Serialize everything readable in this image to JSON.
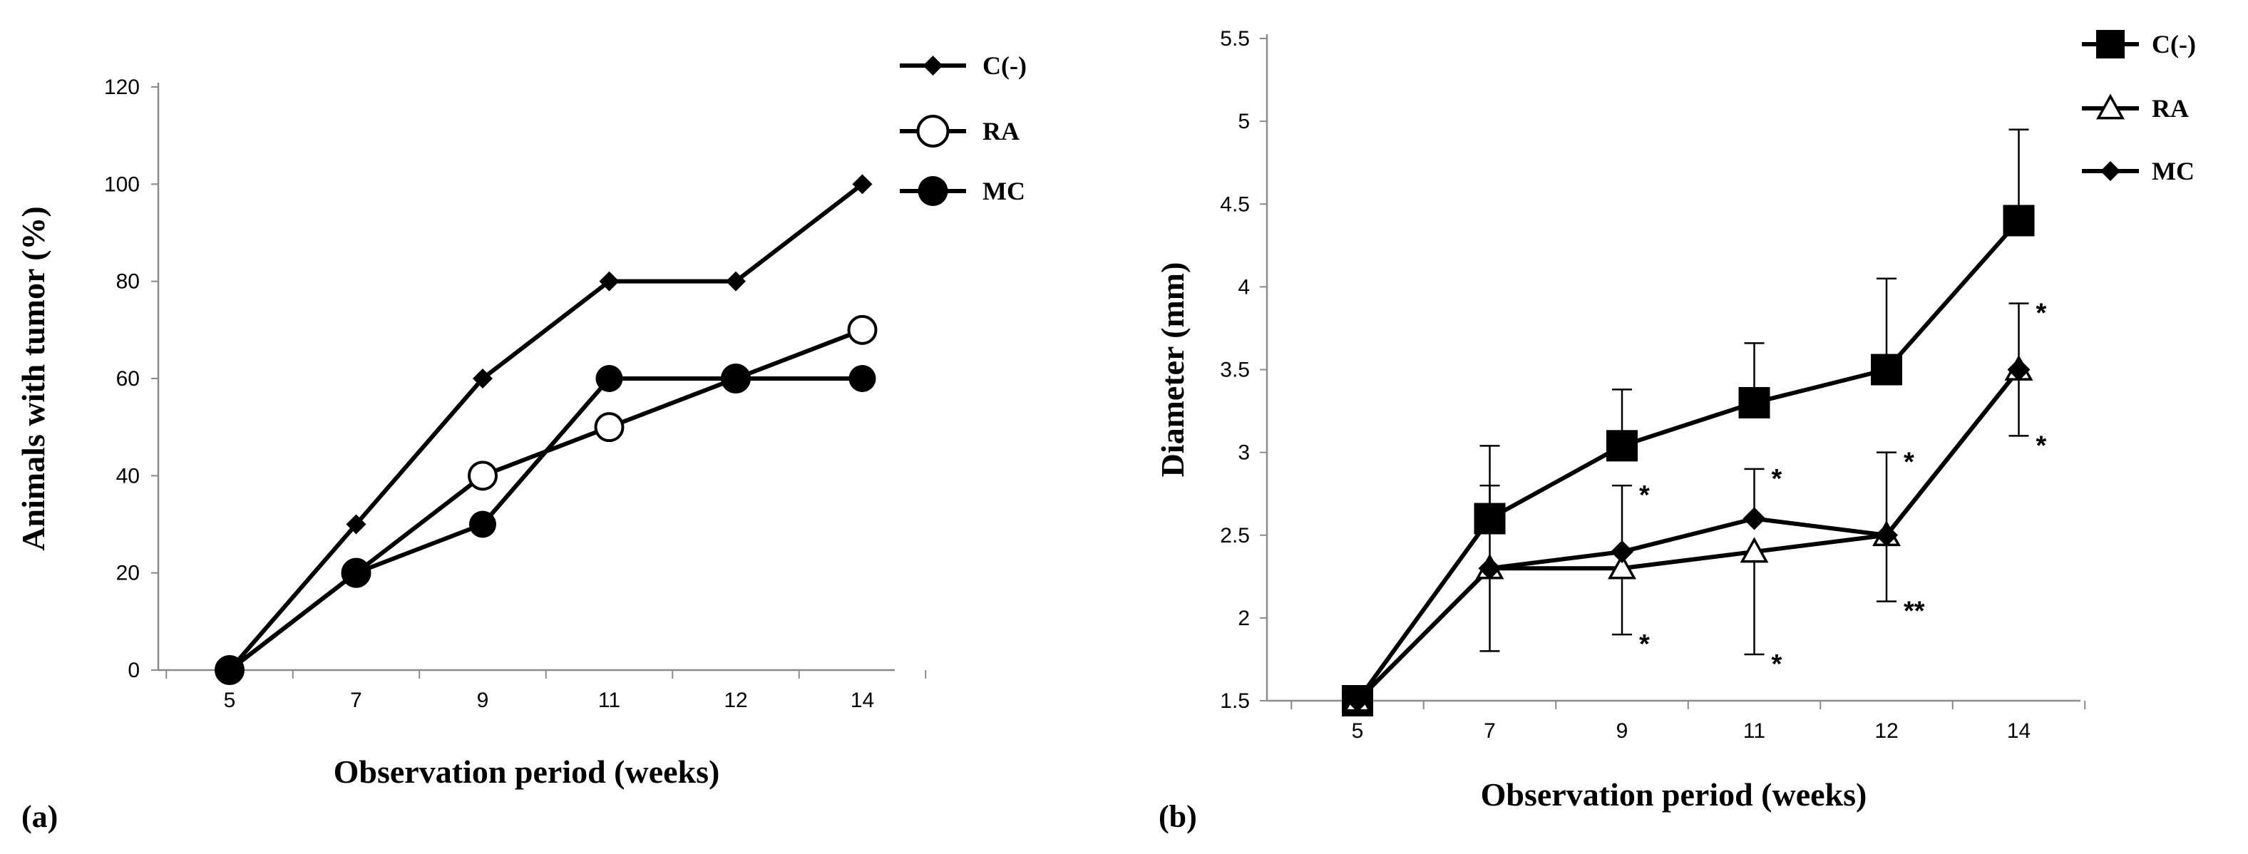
{
  "chart_data": [
    {
      "type": "line",
      "panel_label": "(a)",
      "xlabel": "Observation period (weeks)",
      "ylabel": "Animals with tumor (%)",
      "categories": [
        "5",
        "7",
        "9",
        "11",
        "12",
        "14"
      ],
      "ylim": [
        0,
        120
      ],
      "yticks": [
        "0",
        "20",
        "40",
        "60",
        "80",
        "100",
        "120"
      ],
      "legend_position": "top-right",
      "series": [
        {
          "name": "C(-)",
          "marker": "diamond",
          "values": [
            0,
            30,
            60,
            80,
            80,
            100
          ]
        },
        {
          "name": "RA",
          "marker": "open-circle",
          "values": [
            0,
            20,
            40,
            50,
            60,
            70
          ]
        },
        {
          "name": "MC",
          "marker": "filled-circle",
          "values": [
            0,
            20,
            30,
            60,
            60,
            60
          ]
        }
      ]
    },
    {
      "type": "line",
      "panel_label": "(b)",
      "xlabel": "Observation period (weeks)",
      "ylabel": "Diameter (mm)",
      "categories": [
        "5",
        "7",
        "9",
        "11",
        "12",
        "14"
      ],
      "ylim": [
        1.5,
        5.5
      ],
      "yticks": [
        "1.5",
        "2",
        "2.5",
        "3",
        "3.5",
        "4",
        "4.5",
        "5",
        "5.5"
      ],
      "legend_position": "top-right",
      "series": [
        {
          "name": "C(-)",
          "marker": "square",
          "values": [
            1.5,
            2.6,
            3.04,
            3.3,
            3.5,
            4.4
          ],
          "error_upper": [
            null,
            3.04,
            3.38,
            3.66,
            4.05,
            4.95
          ]
        },
        {
          "name": "RA",
          "marker": "open-triangle",
          "values": [
            1.5,
            2.3,
            2.3,
            2.4,
            2.5,
            3.5
          ],
          "error_lower": [
            null,
            1.8,
            1.9,
            1.78,
            2.1,
            3.1
          ]
        },
        {
          "name": "MC",
          "marker": "diamond",
          "values": [
            1.5,
            2.3,
            2.4,
            2.6,
            2.5,
            3.5
          ],
          "error_upper": [
            null,
            2.8,
            2.8,
            2.9,
            3.0,
            3.9
          ]
        }
      ],
      "annotations": [
        {
          "category": "9",
          "value": 2.8,
          "text": "*"
        },
        {
          "category": "9",
          "value": 1.9,
          "text": "*"
        },
        {
          "category": "11",
          "value": 2.9,
          "text": "*"
        },
        {
          "category": "11",
          "value": 1.78,
          "text": "*"
        },
        {
          "category": "12",
          "value": 3.0,
          "text": "*"
        },
        {
          "category": "12",
          "value": 2.1,
          "text": "**"
        },
        {
          "category": "14",
          "value": 3.9,
          "text": "*"
        },
        {
          "category": "14",
          "value": 3.1,
          "text": "*"
        }
      ]
    }
  ]
}
